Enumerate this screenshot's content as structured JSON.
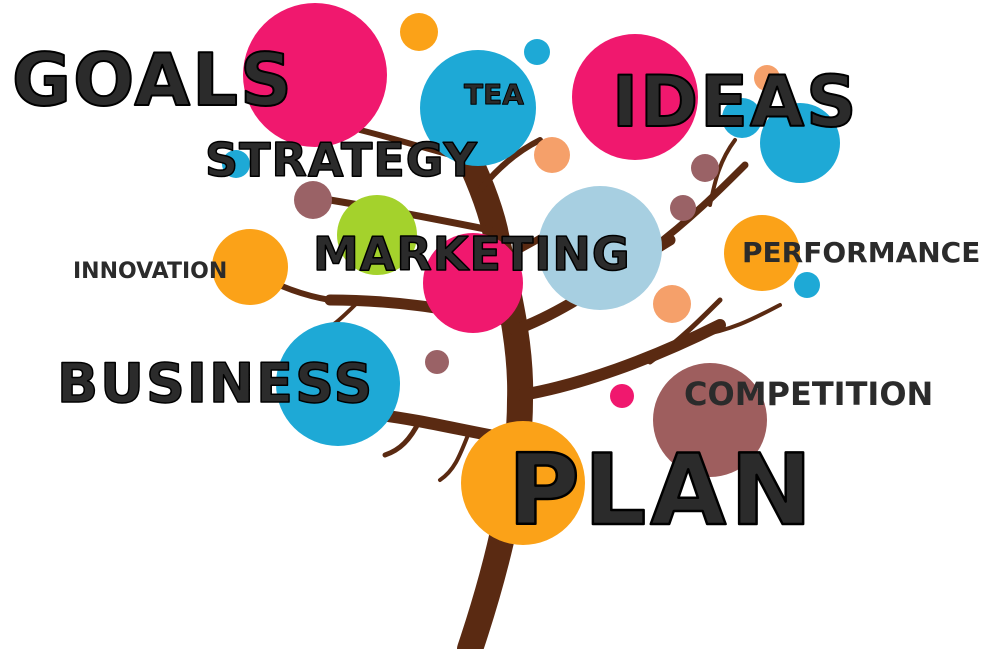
{
  "words": {
    "goals": "GOALS",
    "tea": "TEA",
    "ideas": "IDEAS",
    "strategy": "STRATEGY",
    "innovation": "INNOVATION",
    "marketing": "MARKETING",
    "performance": "PERFORMANCE",
    "business": "BUSINESS",
    "competition": "COMPETITION",
    "plan": "PLAN"
  },
  "colors": {
    "trunk": "#5a2a12",
    "magenta": "#f0186e",
    "cyan": "#1ea9d6",
    "orange": "#fba218",
    "salmon": "#f5a06a",
    "lime": "#a4d22c",
    "lightblue": "#a7cfe1",
    "mauve": "#9a6266",
    "rosybrown": "#9e5e5e",
    "text": "#2b2b2b"
  }
}
